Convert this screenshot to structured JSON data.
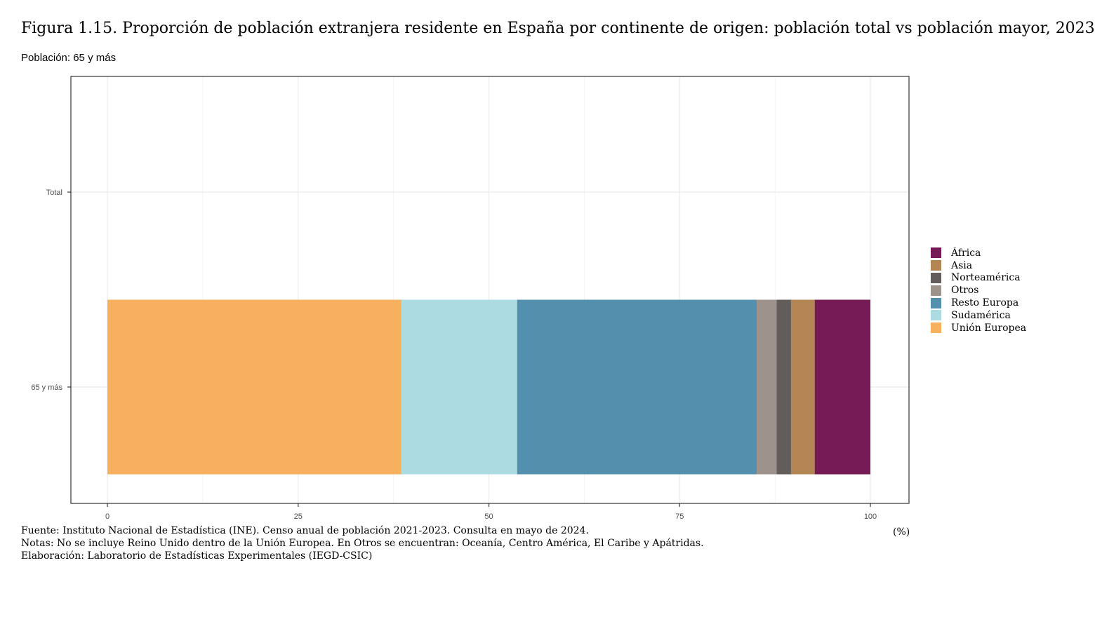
{
  "title": "Figura 1.15. Proporción de población extranjera residente en España por continente de origen: población total vs población mayor, 2023",
  "subtitle": "Población: 65 y más",
  "unit_label": "(%)",
  "footer": {
    "source": "Fuente: Instituto Nacional de Estadística (INE). Censo anual de población 2021-2023. Consulta en mayo de 2024.",
    "notes": "Notas: No se incluye Reino Unido dentro de la Unión Europea. En Otros se encuentran: Oceanía, Centro América, El Caribe y Apátridas.",
    "credit": "Elaboración: Laboratorio de Estadísticas Experimentales (IEGD-CSIC)"
  },
  "legend": [
    {
      "label": "África",
      "color": "#761a55"
    },
    {
      "label": "Asia",
      "color": "#b38553"
    },
    {
      "label": "Norteamérica",
      "color": "#625c5a"
    },
    {
      "label": "Otros",
      "color": "#9e928c"
    },
    {
      "label": "Resto Europa",
      "color": "#5290ae"
    },
    {
      "label": "Sudamérica",
      "color": "#acdce1"
    },
    {
      "label": "Unión Europea",
      "color": "#f6b05e"
    }
  ],
  "chart_data": {
    "type": "bar",
    "orientation": "horizontal",
    "stacked": true,
    "categories": [
      "Total",
      "65 y más"
    ],
    "xlim": [
      0,
      100
    ],
    "x_ticks": [
      0,
      25,
      50,
      75,
      100
    ],
    "grid": true,
    "legend_position": "right",
    "series": [
      {
        "name": "Unión Europea",
        "color": "#f6b05e",
        "values": [
          null,
          38.5
        ]
      },
      {
        "name": "Sudamérica",
        "color": "#acdce1",
        "values": [
          null,
          15.2
        ]
      },
      {
        "name": "Resto Europa",
        "color": "#5290ae",
        "values": [
          null,
          31.4
        ]
      },
      {
        "name": "Otros",
        "color": "#9e928c",
        "values": [
          null,
          2.6
        ]
      },
      {
        "name": "Norteamérica",
        "color": "#625c5a",
        "values": [
          null,
          1.9
        ]
      },
      {
        "name": "Asia",
        "color": "#b38553",
        "values": [
          null,
          3.1
        ]
      },
      {
        "name": "África",
        "color": "#761a55",
        "values": [
          null,
          7.3
        ]
      }
    ]
  }
}
